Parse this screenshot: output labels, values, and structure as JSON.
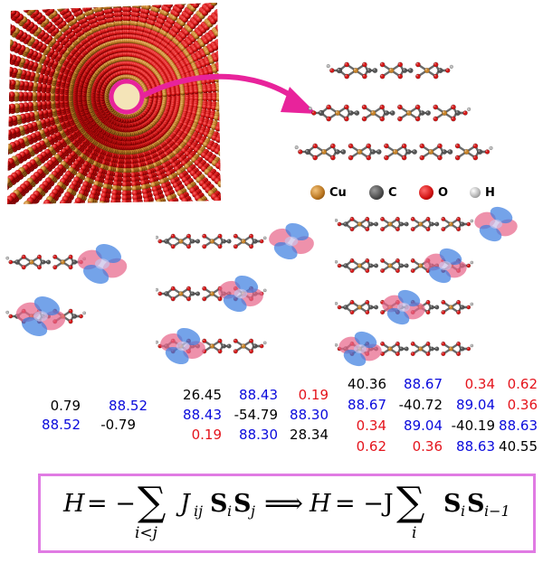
{
  "legend": [
    {
      "symbol": "Cu",
      "color": "#c8842a"
    },
    {
      "symbol": "C",
      "color": "#555555"
    },
    {
      "symbol": "O",
      "color": "#d41818"
    },
    {
      "symbol": "H",
      "color": "#bcbcbc"
    }
  ],
  "matrix_2x2": [
    [
      {
        "v": "0.79",
        "c": "black"
      },
      {
        "v": "88.52",
        "c": "blue"
      }
    ],
    [
      {
        "v": "88.52",
        "c": "blue"
      },
      {
        "v": "-0.79",
        "c": "black"
      }
    ]
  ],
  "matrix_3x3": [
    [
      {
        "v": "26.45",
        "c": "black"
      },
      {
        "v": "88.43",
        "c": "blue"
      },
      {
        "v": "0.19",
        "c": "red"
      }
    ],
    [
      {
        "v": "88.43",
        "c": "blue"
      },
      {
        "v": "-54.79",
        "c": "black"
      },
      {
        "v": "88.30",
        "c": "blue"
      }
    ],
    [
      {
        "v": "0.19",
        "c": "red"
      },
      {
        "v": "88.30",
        "c": "blue"
      },
      {
        "v": "28.34",
        "c": "black"
      }
    ]
  ],
  "matrix_4x4": [
    [
      {
        "v": "40.36",
        "c": "black"
      },
      {
        "v": "88.67",
        "c": "blue"
      },
      {
        "v": "0.34",
        "c": "red"
      },
      {
        "v": "0.62",
        "c": "red"
      }
    ],
    [
      {
        "v": "88.67",
        "c": "blue"
      },
      {
        "v": "-40.72",
        "c": "black"
      },
      {
        "v": "89.04",
        "c": "blue"
      },
      {
        "v": "0.36",
        "c": "red"
      }
    ],
    [
      {
        "v": "0.34",
        "c": "red"
      },
      {
        "v": "89.04",
        "c": "blue"
      },
      {
        "v": "-40.19",
        "c": "black"
      },
      {
        "v": "88.63",
        "c": "blue"
      }
    ],
    [
      {
        "v": "0.62",
        "c": "red"
      },
      {
        "v": "0.36",
        "c": "red"
      },
      {
        "v": "88.63",
        "c": "blue"
      },
      {
        "v": "40.55",
        "c": "black"
      }
    ]
  ],
  "formula": {
    "lhs_H": "H",
    "eq1": "= −",
    "J": "J",
    "J_sub": "ij",
    "S": "S",
    "i": "i",
    "j": "j",
    "sum1_sub": "i<j",
    "implies": "⟹",
    "rhs_H": "H",
    "eq2": "= −J",
    "S_sub_last": "i−1",
    "sum2_sub": "i"
  }
}
